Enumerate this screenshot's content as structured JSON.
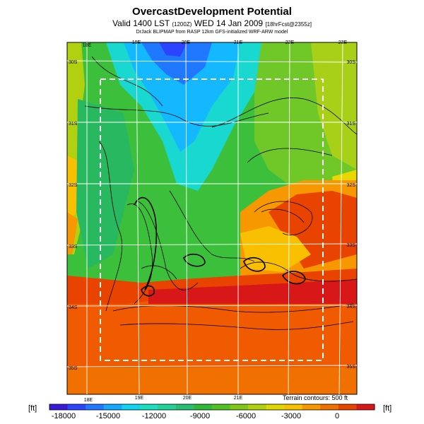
{
  "header": {
    "title": "OvercastDevelopment Potential",
    "valid": "Valid 1400 LST",
    "valid_small": "(1200Z)",
    "date": "WED 14 Jan 2009",
    "run_small": "[18hrFcst@2355z]",
    "credit": "DrJack BLIPMAP from RASP 12km GFS-initialized WRF-ARW model"
  },
  "map": {
    "lon_labels_top": [
      "18E",
      "19E",
      "20E",
      "21E",
      "22E",
      "23E"
    ],
    "lon_labels_bottom": [
      "18E",
      "19E",
      "20E",
      "21E"
    ],
    "lat_labels_left": [
      "30S",
      "31S",
      "32S",
      "33S",
      "34S",
      "35S"
    ],
    "lat_labels_right": [
      "30S",
      "31S",
      "32S",
      "33S",
      "34S",
      "35S"
    ],
    "terrain_note": "Terrain contours: 500 ft",
    "inner_domain_box": "dashed-white"
  },
  "colorbar": {
    "unit_left": "[ft]",
    "unit_right": "[ft]",
    "tick_labels": [
      "-18000",
      "-15000",
      "-12000",
      "-9000",
      "-6000",
      "-3000",
      "0"
    ],
    "colors": [
      "#3a1ad8",
      "#2a44ff",
      "#1f78ff",
      "#14a8ff",
      "#10d4f0",
      "#19e0c0",
      "#22d09a",
      "#28c070",
      "#30b838",
      "#52c020",
      "#80c818",
      "#b0d010",
      "#e0d800",
      "#f8c000",
      "#f89800",
      "#f07000",
      "#e84400",
      "#d81818"
    ]
  }
}
